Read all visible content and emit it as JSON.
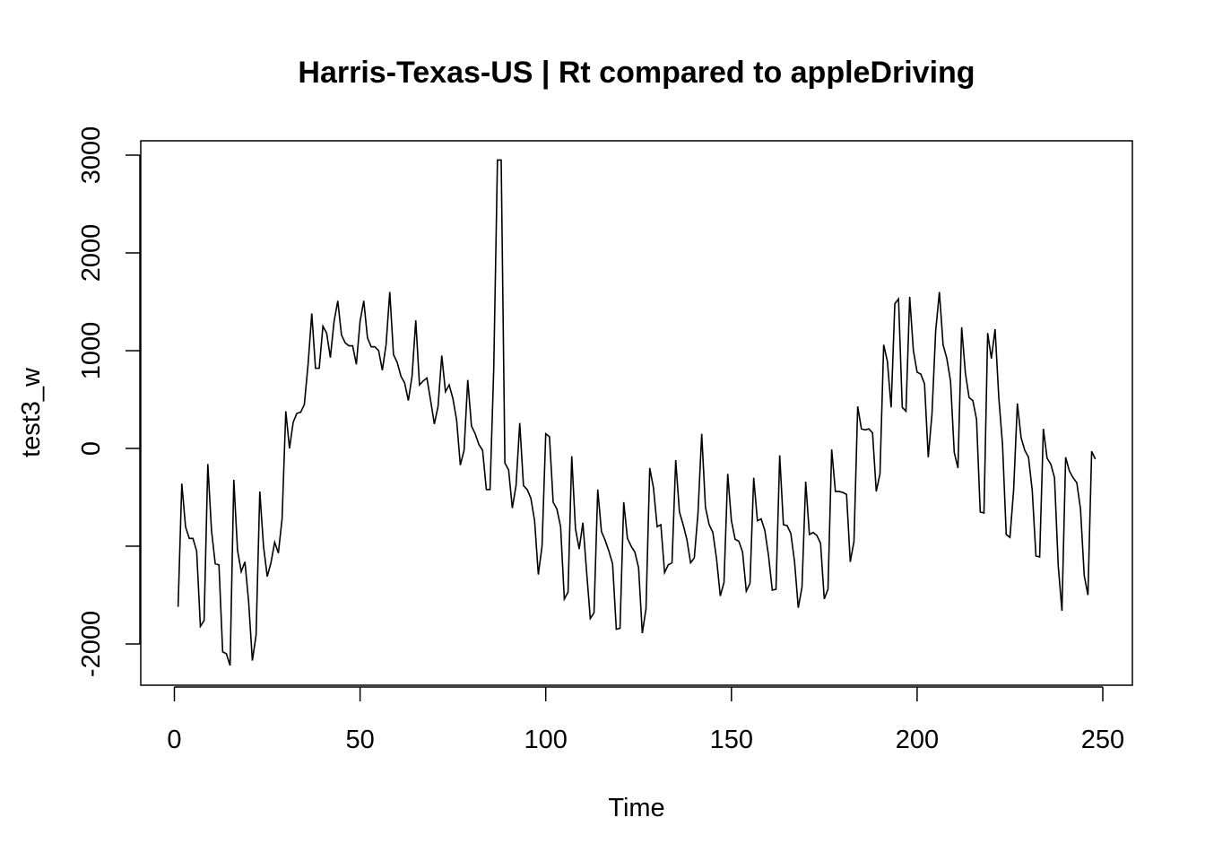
{
  "chart_data": {
    "type": "line",
    "title": "Harris-Texas-US | Rt compared to appleDriving",
    "xlabel": "Time",
    "ylabel": "test3_w",
    "xlim": [
      1,
      248
    ],
    "ylim": [
      -2400,
      3000
    ],
    "x_ticks": [
      0,
      50,
      100,
      150,
      200,
      250
    ],
    "x_tick_labels": [
      "0",
      "50",
      "100",
      "150",
      "200",
      "250"
    ],
    "y_ticks": [
      -2000,
      -1000,
      0,
      1000,
      2000,
      3000
    ],
    "y_tick_labels": [
      "-2000",
      "",
      "0",
      "1000",
      "2000",
      "3000"
    ],
    "grid": false,
    "legend": "none",
    "series": [
      {
        "x_start": 1,
        "x_step": 1,
        "values": [
          -1620,
          -360,
          -800,
          -920,
          -920,
          -1050,
          -1820,
          -1760,
          -160,
          -840,
          -1180,
          -1190,
          -2080,
          -2100,
          -2220,
          -320,
          -1040,
          -1260,
          -1160,
          -1570,
          -2170,
          -1910,
          -440,
          -1000,
          -1310,
          -1170,
          -960,
          -1070,
          -720,
          380,
          0,
          270,
          360,
          370,
          450,
          860,
          1380,
          820,
          820,
          1250,
          1180,
          930,
          1300,
          1510,
          1160,
          1080,
          1050,
          1050,
          860,
          1300,
          1510,
          1130,
          1040,
          1040,
          1000,
          800,
          1060,
          1600,
          960,
          880,
          740,
          670,
          490,
          740,
          1310,
          650,
          690,
          720,
          490,
          250,
          430,
          950,
          580,
          650,
          510,
          290,
          -170,
          -20,
          700,
          230,
          150,
          40,
          -20,
          -420,
          -420,
          820,
          2950,
          2950,
          -150,
          -220,
          -610,
          -380,
          260,
          -380,
          -420,
          -510,
          -740,
          -1290,
          -1000,
          150,
          120,
          -550,
          -620,
          -800,
          -1540,
          -1470,
          -80,
          -820,
          -1030,
          -760,
          -1260,
          -1740,
          -1680,
          -420,
          -850,
          -940,
          -1050,
          -1180,
          -1850,
          -1840,
          -550,
          -920,
          -1000,
          -1060,
          -1220,
          -1890,
          -1640,
          -200,
          -400,
          -800,
          -780,
          -1270,
          -1190,
          -1170,
          -120,
          -650,
          -780,
          -930,
          -1170,
          -1120,
          -660,
          150,
          -600,
          -780,
          -860,
          -1130,
          -1510,
          -1370,
          -260,
          -740,
          -930,
          -950,
          -1060,
          -1460,
          -1380,
          -300,
          -740,
          -720,
          -840,
          -1100,
          -1450,
          -1440,
          -70,
          -780,
          -790,
          -870,
          -1160,
          -1630,
          -1420,
          -340,
          -880,
          -860,
          -890,
          -970,
          -1540,
          -1440,
          -10,
          -440,
          -440,
          -450,
          -470,
          -1160,
          -950,
          430,
          200,
          190,
          200,
          160,
          -440,
          -260,
          1060,
          890,
          420,
          1480,
          1530,
          420,
          380,
          1550,
          1000,
          780,
          760,
          660,
          -90,
          350,
          1200,
          1600,
          1060,
          920,
          690,
          -40,
          -200,
          1240,
          770,
          520,
          490,
          300,
          -650,
          -660,
          1180,
          920,
          1220,
          520,
          40,
          -880,
          -910,
          -420,
          460,
          110,
          -20,
          -90,
          -430,
          -1100,
          -1110,
          200,
          -100,
          -160,
          -300,
          -1200,
          -1660,
          -90,
          -230,
          -300,
          -350,
          -620,
          -1300,
          -1500,
          -30,
          -110
        ]
      }
    ]
  }
}
